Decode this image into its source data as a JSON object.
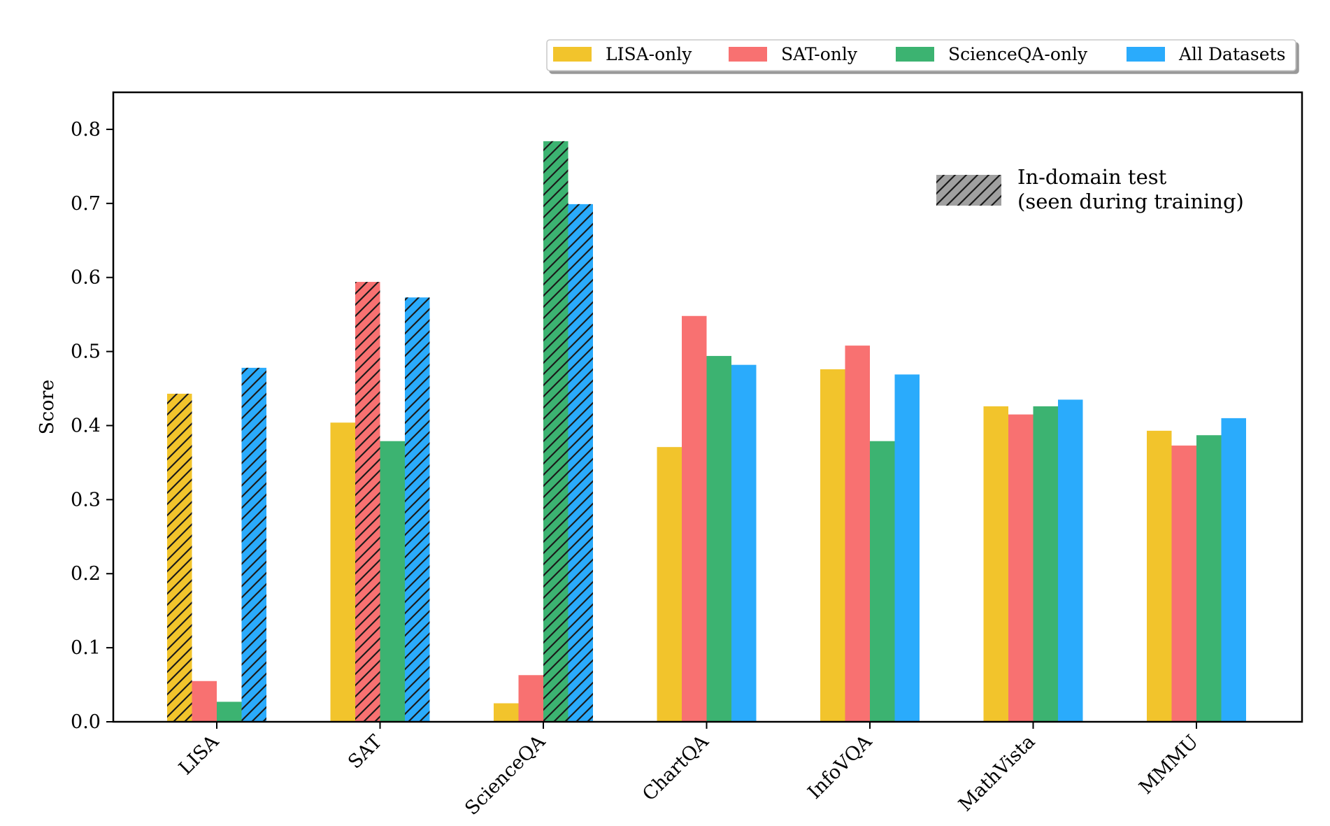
{
  "chart_data": {
    "type": "bar",
    "title": "",
    "xlabel": "",
    "ylabel": "Score",
    "ylim": [
      0,
      0.85
    ],
    "yticks": [
      "0.0",
      "0.1",
      "0.2",
      "0.3",
      "0.4",
      "0.5",
      "0.6",
      "0.7",
      "0.8"
    ],
    "categories": [
      "LISA",
      "SAT",
      "ScienceQA",
      "ChartQA",
      "InfoVQA",
      "MathVista",
      "MMMU"
    ],
    "legend_position": "top-right, above plot",
    "grid": false,
    "series": [
      {
        "name": "LISA-only",
        "color": "#F2C42C",
        "values": [
          0.443,
          0.404,
          0.025,
          0.371,
          0.476,
          0.426,
          0.393
        ],
        "in_domain": [
          true,
          false,
          false,
          false,
          false,
          false,
          false
        ]
      },
      {
        "name": "SAT-only",
        "color": "#F87171",
        "values": [
          0.055,
          0.594,
          0.063,
          0.548,
          0.508,
          0.415,
          0.373
        ],
        "in_domain": [
          false,
          true,
          false,
          false,
          false,
          false,
          false
        ]
      },
      {
        "name": "ScienceQA-only",
        "color": "#3CB371",
        "values": [
          0.027,
          0.379,
          0.784,
          0.494,
          0.379,
          0.426,
          0.387
        ],
        "in_domain": [
          false,
          false,
          true,
          false,
          false,
          false,
          false
        ]
      },
      {
        "name": "All Datasets",
        "color": "#2AABFC",
        "values": [
          0.478,
          0.573,
          0.699,
          0.482,
          0.469,
          0.435,
          0.41
        ],
        "in_domain": [
          true,
          true,
          true,
          false,
          false,
          false,
          false
        ]
      }
    ],
    "annotation": {
      "line1": "In-domain test",
      "line2": "(seen during training)",
      "swatch_color": "#A0A0A0"
    }
  }
}
